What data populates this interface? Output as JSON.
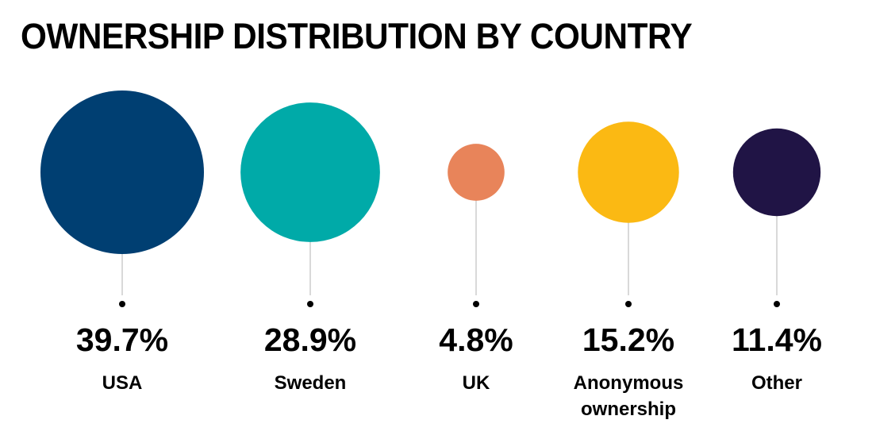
{
  "chart_data": {
    "type": "bubble",
    "title": "OWNERSHIP DISTRIBUTION BY COUNTRY",
    "value_suffix": "%",
    "categories": [
      [
        "USA"
      ],
      [
        "Sweden"
      ],
      [
        "UK"
      ],
      [
        "Anonymous",
        "ownership"
      ],
      [
        "Other"
      ]
    ],
    "values": [
      39.7,
      28.9,
      4.8,
      15.2,
      11.4
    ],
    "colors": [
      "#003f72",
      "#00aaa8",
      "#e8845a",
      "#fbb913",
      "#201445"
    ],
    "stem_color": "#d9d9d9",
    "dot_color": "#000000",
    "grid": false,
    "legend": "none"
  }
}
